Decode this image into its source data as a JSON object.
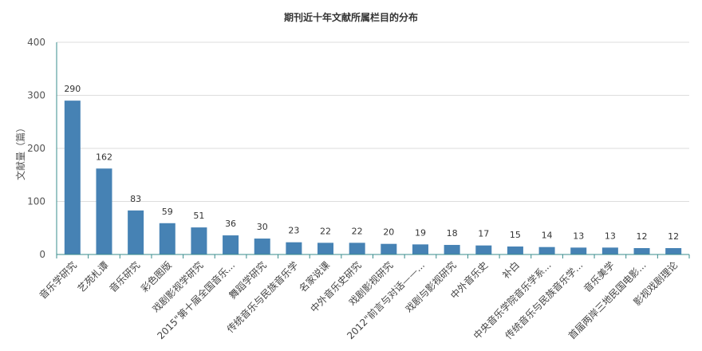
{
  "chart_data": {
    "type": "bar",
    "title": "期刊近十年文献所属栏目的分布",
    "xlabel": "",
    "ylabel": "文献量（篇）",
    "ylim": [
      0,
      400
    ],
    "yticks": [
      0,
      100,
      200,
      300,
      400
    ],
    "grid": true,
    "categories": [
      "音乐学研究",
      "艺苑札谭",
      "音乐研究",
      "彩色图版",
      "戏剧影视学研究",
      "2015\"第十届全国音乐...",
      "舞蹈学研究",
      "传统音乐与民族音乐学",
      "名家说课",
      "中外音乐史研究",
      "戏剧影视研究",
      "2012\"前言与对话——...",
      "戏剧与影视研究",
      "中外音乐史",
      "补白",
      "中央音乐学院音乐学系...",
      "传统音乐与民族音乐学...",
      "音乐美学",
      "首届两岸三地民国电影...",
      "影视戏剧理论"
    ],
    "values": [
      290,
      162,
      83,
      59,
      51,
      36,
      30,
      23,
      22,
      22,
      20,
      19,
      18,
      17,
      15,
      14,
      13,
      13,
      12,
      12
    ],
    "colors": {
      "bar": "#4682b4",
      "grid": "#dddddd",
      "axis": "#3a8d8d"
    }
  }
}
